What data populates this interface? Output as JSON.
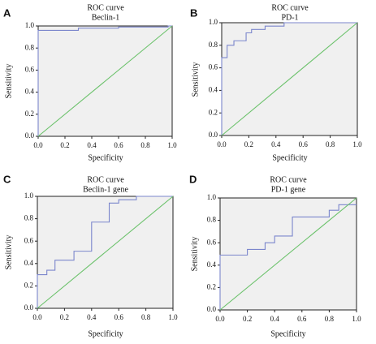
{
  "chart_data": [
    {
      "type": "line",
      "panel": "A",
      "title": "ROC curve",
      "subtitle": "Beclin-1",
      "xlabel": "Specificity",
      "ylabel": "Sensitivity",
      "xlim": [
        0,
        1
      ],
      "ylim": [
        0,
        1
      ],
      "xticks": [
        "0.0",
        "0.2",
        "0.4",
        "0.6",
        "0.8",
        "1.0"
      ],
      "yticks": [
        "0.0",
        "0.2",
        "0.4",
        "0.6",
        "0.8",
        "1.0"
      ],
      "grid": false,
      "series": [
        {
          "role": "roc",
          "color": "#7b86cc",
          "x": [
            0,
            0,
            0.3,
            0.3,
            0.6,
            0.6,
            0.97,
            0.97,
            1
          ],
          "y": [
            0,
            0.96,
            0.96,
            0.98,
            0.98,
            0.99,
            0.99,
            1.0,
            1.0
          ]
        },
        {
          "role": "reference",
          "color": "#6cc26c",
          "x": [
            0,
            1
          ],
          "y": [
            0,
            1
          ]
        }
      ]
    },
    {
      "type": "line",
      "panel": "B",
      "title": "ROC curve",
      "subtitle": "PD-1",
      "xlabel": "Specificity",
      "ylabel": "Sensitivity",
      "xlim": [
        0,
        1
      ],
      "ylim": [
        0,
        1
      ],
      "xticks": [
        "0.0",
        "0.2",
        "0.4",
        "0.6",
        "0.8",
        "1.0"
      ],
      "yticks": [
        "0.0",
        "0.2",
        "0.4",
        "0.6",
        "0.8",
        "1.0"
      ],
      "grid": false,
      "series": [
        {
          "role": "roc",
          "color": "#7b86cc",
          "x": [
            0,
            0,
            0.04,
            0.04,
            0.09,
            0.09,
            0.18,
            0.18,
            0.22,
            0.22,
            0.32,
            0.32,
            0.46,
            0.46,
            1
          ],
          "y": [
            0,
            0.69,
            0.69,
            0.8,
            0.8,
            0.84,
            0.84,
            0.91,
            0.91,
            0.94,
            0.94,
            0.97,
            0.97,
            1.0,
            1.0
          ]
        },
        {
          "role": "reference",
          "color": "#6cc26c",
          "x": [
            0,
            1
          ],
          "y": [
            0,
            1
          ]
        }
      ]
    },
    {
      "type": "line",
      "panel": "C",
      "title": "ROC curve",
      "subtitle": "Beclin-1 gene",
      "xlabel": "Specificity",
      "ylabel": "Sensitivity",
      "xlim": [
        0,
        1
      ],
      "ylim": [
        0,
        1
      ],
      "xticks": [
        "0.0",
        "0.2",
        "0.4",
        "0.6",
        "0.8",
        "1.0"
      ],
      "yticks": [
        "0.0",
        "0.2",
        "0.4",
        "0.6",
        "0.8",
        "1.0"
      ],
      "grid": false,
      "series": [
        {
          "role": "roc",
          "color": "#7b86cc",
          "x": [
            0,
            0,
            0.07,
            0.07,
            0.13,
            0.13,
            0.27,
            0.27,
            0.4,
            0.4,
            0.53,
            0.53,
            0.6,
            0.6,
            0.73,
            0.73,
            1
          ],
          "y": [
            0,
            0.3,
            0.3,
            0.34,
            0.34,
            0.43,
            0.43,
            0.51,
            0.51,
            0.77,
            0.77,
            0.94,
            0.94,
            0.97,
            0.97,
            1.0,
            1.0
          ]
        },
        {
          "role": "reference",
          "color": "#6cc26c",
          "x": [
            0,
            1
          ],
          "y": [
            0,
            1
          ]
        }
      ]
    },
    {
      "type": "line",
      "panel": "D",
      "title": "ROC curve",
      "subtitle": "PD-1 gene",
      "xlabel": "Specificity",
      "ylabel": "Sensitivity",
      "xlim": [
        0,
        1
      ],
      "ylim": [
        0,
        1
      ],
      "xticks": [
        "0.0",
        "0.2",
        "0.4",
        "0.6",
        "0.8",
        "1.0"
      ],
      "yticks": [
        "0.0",
        "0.2",
        "0.4",
        "0.6",
        "0.8",
        "1.0"
      ],
      "grid": false,
      "series": [
        {
          "role": "roc",
          "color": "#7b86cc",
          "x": [
            0,
            0,
            0.2,
            0.2,
            0.33,
            0.33,
            0.4,
            0.4,
            0.53,
            0.53,
            0.8,
            0.8,
            0.87,
            0.87,
            1
          ],
          "y": [
            0,
            0.49,
            0.49,
            0.54,
            0.54,
            0.6,
            0.6,
            0.66,
            0.66,
            0.83,
            0.83,
            0.89,
            0.89,
            0.94,
            0.94
          ]
        },
        {
          "role": "reference",
          "color": "#6cc26c",
          "x": [
            0,
            1
          ],
          "y": [
            0,
            1
          ]
        }
      ]
    }
  ]
}
